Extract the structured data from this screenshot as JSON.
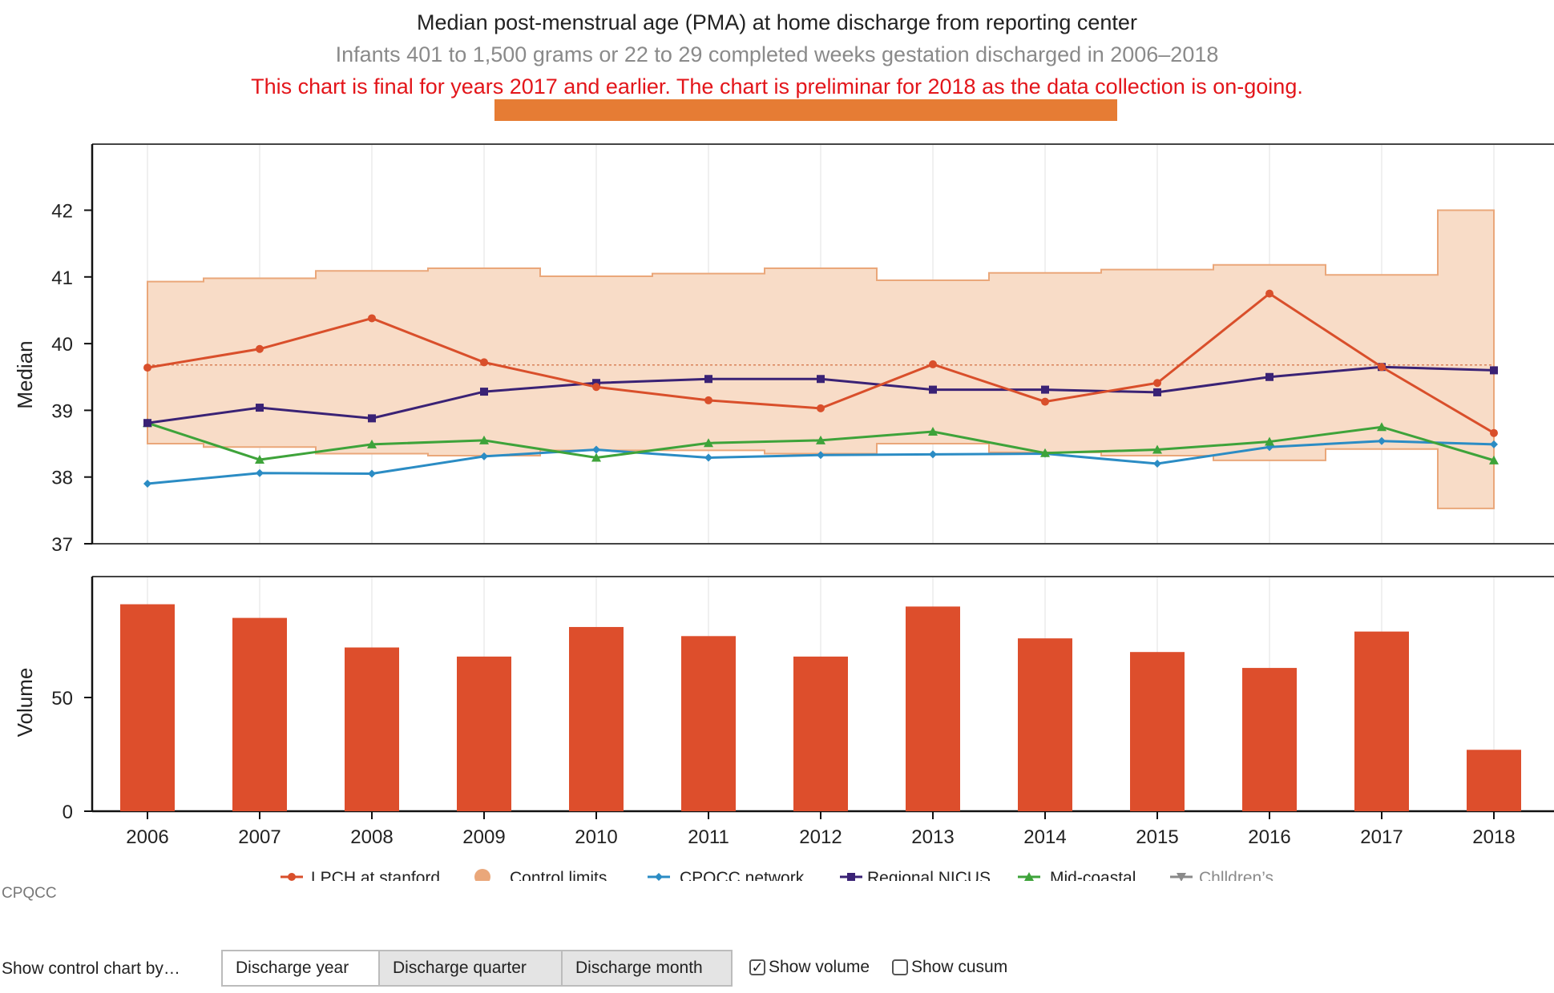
{
  "header": {
    "title": "Median post-menstrual age (PMA) at home discharge from reporting center",
    "subtitle": "Infants 401 to 1,500 grams or 22 to 29 completed weeks gestation discharged in 2006–2018",
    "notice": "This chart is final for years 2017 and earlier. The chart is preliminar for 2018 as the data collection is on-going."
  },
  "colors": {
    "banner": "#e67c34",
    "lpch": "#d94f2b",
    "control_fill": "#f8dcc7",
    "control_line": "#eaa77a",
    "cpqcc": "#2b8cc4",
    "regional": "#3a2275",
    "midcoastal": "#3ea33a",
    "childrens": "#8a8a8a",
    "volume_bar": "#dd4e2c"
  },
  "chart_data": [
    {
      "type": "line",
      "ylabel": "Median",
      "ylim": [
        37,
        43
      ],
      "yticks": [
        37,
        38,
        39,
        40,
        41,
        42
      ],
      "x": [
        "2006",
        "2007",
        "2008",
        "2009",
        "2010",
        "2011",
        "2012",
        "2013",
        "2014",
        "2015",
        "2016",
        "2017",
        "2018"
      ],
      "center_line": 39.68,
      "control_limits": {
        "upper": [
          40.93,
          40.98,
          41.09,
          41.13,
          41.01,
          41.05,
          41.13,
          40.95,
          41.06,
          41.11,
          41.18,
          41.03,
          42.0
        ],
        "lower": [
          38.5,
          38.45,
          38.35,
          38.32,
          38.4,
          38.4,
          38.35,
          38.5,
          38.37,
          38.32,
          38.25,
          38.42,
          37.53
        ]
      },
      "series": [
        {
          "name": "LPCH at stanford",
          "values": [
            39.64,
            39.92,
            40.38,
            39.72,
            39.35,
            39.15,
            39.03,
            39.69,
            39.13,
            39.41,
            40.75,
            39.65,
            38.66
          ]
        },
        {
          "name": "CPQCC network",
          "values": [
            37.9,
            38.06,
            38.05,
            38.31,
            38.41,
            38.29,
            38.33,
            38.34,
            38.35,
            38.2,
            38.45,
            38.54,
            38.49
          ]
        },
        {
          "name": "Regional NICUS",
          "values": [
            38.81,
            39.04,
            38.88,
            39.28,
            39.41,
            39.47,
            39.47,
            39.31,
            39.31,
            39.27,
            39.5,
            39.65,
            39.6
          ]
        },
        {
          "name": "Mid-coastal",
          "values": [
            38.81,
            38.26,
            38.49,
            38.55,
            38.29,
            38.51,
            38.55,
            38.68,
            38.36,
            38.41,
            38.53,
            38.75,
            38.25
          ]
        }
      ]
    },
    {
      "type": "bar",
      "ylabel": "Volume",
      "ylim": [
        0,
        100
      ],
      "yticks": [
        0,
        50
      ],
      "categories": [
        "2006",
        "2007",
        "2008",
        "2009",
        "2010",
        "2011",
        "2012",
        "2013",
        "2014",
        "2015",
        "2016",
        "2017",
        "2018"
      ],
      "values": [
        91,
        85,
        72,
        68,
        81,
        77,
        68,
        90,
        76,
        70,
        63,
        79,
        27
      ]
    }
  ],
  "legend": {
    "placement": "bottom",
    "items": [
      {
        "label": "LPCH at stanford",
        "marker": "circle",
        "color": "#d94f2b",
        "line": true
      },
      {
        "label": "Control limits",
        "marker": "circle",
        "color": "#eaa77a",
        "line": false
      },
      {
        "label": "CPQCC network",
        "marker": "diamond",
        "color": "#2b8cc4",
        "line": true
      },
      {
        "label": "Regional NICUS",
        "marker": "square",
        "color": "#3a2275",
        "line": true
      },
      {
        "label": "Mid-coastal",
        "marker": "triangle",
        "color": "#3ea33a",
        "line": true
      },
      {
        "label": "Chlldren’s",
        "marker": "triangle-down",
        "color": "#8a8a8a",
        "line": true
      }
    ]
  },
  "source": "CPQCC",
  "controls": {
    "label": "Show control chart by…",
    "options": [
      "Discharge year",
      "Discharge quarter",
      "Discharge month"
    ],
    "selected": "Discharge year",
    "show_volume": {
      "label": "Show volume",
      "checked": true
    },
    "show_cusum": {
      "label": "Show cusum",
      "checked": false
    }
  }
}
